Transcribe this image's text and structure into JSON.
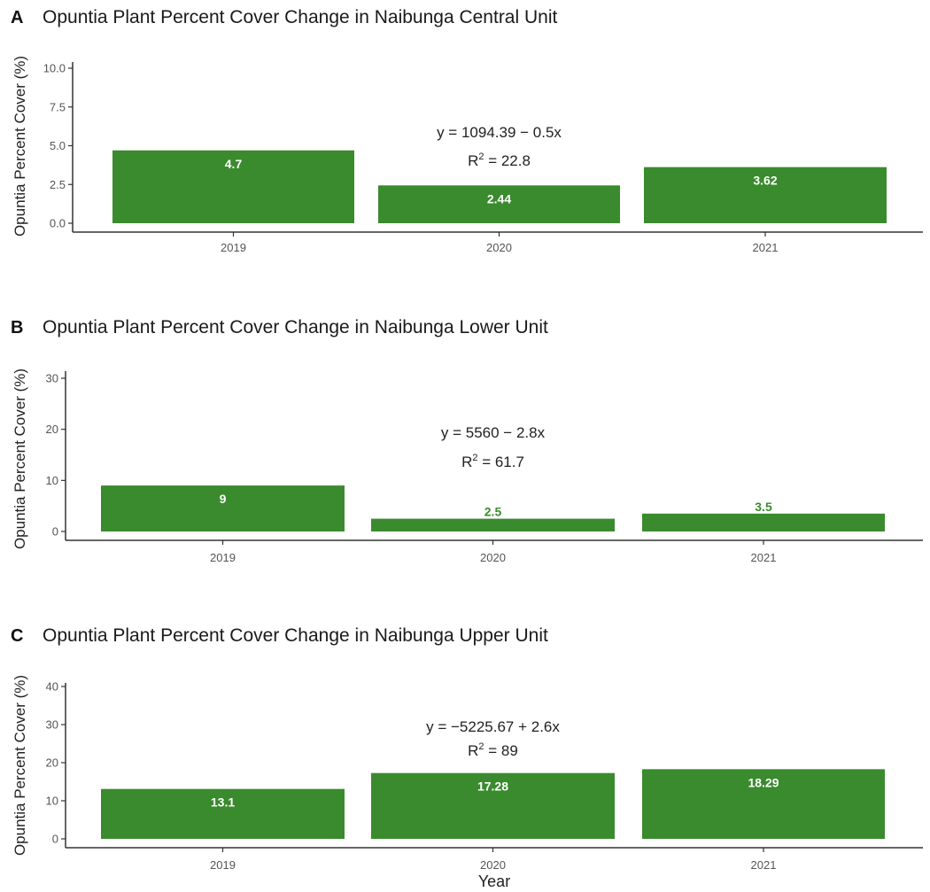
{
  "colors": {
    "bar": "#3a8a2e",
    "label_inside": "#ffffff",
    "label_outside": "#3a8a2e"
  },
  "chart_data": [
    {
      "type": "bar",
      "panel": "A",
      "title": "Opuntia Plant Percent Cover Change in Naibunga Central Unit",
      "xlabel": "",
      "ylabel": "Opuntia Percent Cover (%)",
      "categories": [
        "2019",
        "2020",
        "2021"
      ],
      "values": [
        4.7,
        2.44,
        3.62
      ],
      "data_labels": [
        "4.7",
        "2.44",
        "3.62"
      ],
      "label_position": "inside",
      "ylim": [
        0,
        10
      ],
      "yticks": [
        "0.0",
        "2.5",
        "5.0",
        "7.5",
        "10.0"
      ],
      "equation": "y = 1094.39 − 0.5x",
      "r2_prefix": "R",
      "r2_sup": "2",
      "r2_value": " = 22.8",
      "grid": false
    },
    {
      "type": "bar",
      "panel": "B",
      "title": "Opuntia Plant Percent Cover Change in Naibunga Lower Unit",
      "xlabel": "",
      "ylabel": "Opuntia Percent Cover (%)",
      "categories": [
        "2019",
        "2020",
        "2021"
      ],
      "values": [
        9,
        2.5,
        3.5
      ],
      "data_labels": [
        "9",
        "2.5",
        "3.5"
      ],
      "label_position": "inside-first",
      "ylim": [
        0,
        30
      ],
      "yticks": [
        "0",
        "10",
        "20",
        "30"
      ],
      "equation": "y = 5560 − 2.8x",
      "r2_prefix": "R",
      "r2_sup": "2",
      "r2_value": " = 61.7",
      "grid": false
    },
    {
      "type": "bar",
      "panel": "C",
      "title": "Opuntia Plant Percent Cover Change in Naibunga Upper Unit",
      "xlabel": "Year",
      "ylabel": "Opuntia Percent Cover (%)",
      "categories": [
        "2019",
        "2020",
        "2021"
      ],
      "values": [
        13.1,
        17.28,
        18.29
      ],
      "data_labels": [
        "13.1",
        "17.28",
        "18.29"
      ],
      "label_position": "inside",
      "ylim": [
        0,
        40
      ],
      "yticks": [
        "0",
        "10",
        "20",
        "30",
        "40"
      ],
      "equation": "y = −5225.67 + 2.6x",
      "r2_prefix": "R",
      "r2_sup": "2",
      "r2_value": " = 89",
      "grid": false
    }
  ]
}
